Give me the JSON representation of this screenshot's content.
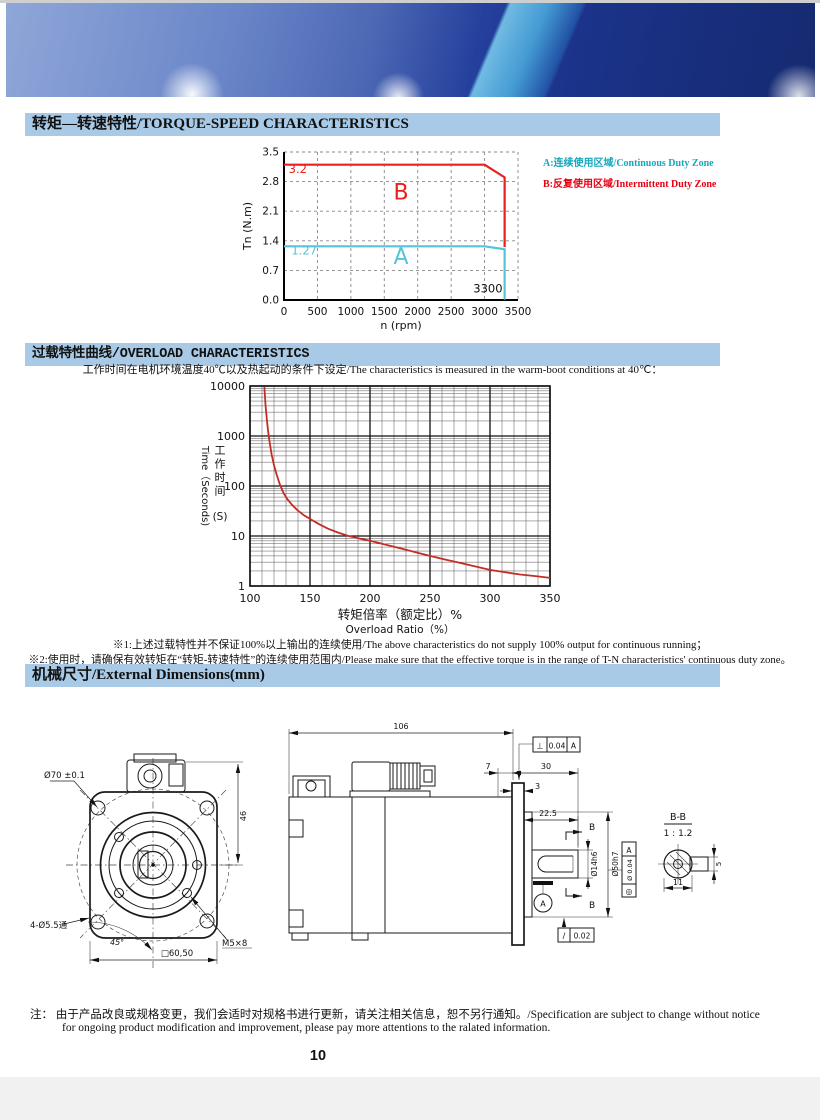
{
  "page": {
    "number": "10"
  },
  "sections": {
    "torque": {
      "title": "转矩—转速特性/TORQUE-SPEED CHARACTERISTICS"
    },
    "overload": {
      "title": "过载特性曲线/OVERLOAD CHARACTERISTICS",
      "condition": "工作时间在电机环境温度40℃以及热起动的条件下设定/The characteristics is measured in the warm-boot conditions at 40℃：",
      "note1": "※1:上述过载特性并不保证100%以上输出的连续使用/The above characteristics do not supply 100% output for continuous running；",
      "note2": "※2:使用时，请确保有效转矩在“转矩-转速特性”的连续使用范围内/Please make sure that the effective torque is in the range of T-N characteristics' continuous duty zone。"
    },
    "dimensions": {
      "title": "机械尺寸/External Dimensions(mm)"
    }
  },
  "footer": {
    "note_label": "注：",
    "line1": "由于产品改良或规格变更，我们会适时对规格书进行更新，请关注相关信息，恕不另行通知。/Specification are subject to change without notice",
    "line2": "for ongoing product modification and improvement, please pay more attentions to the ralated information."
  },
  "chart_data": [
    {
      "type": "line",
      "title": "Torque-Speed Characteristics",
      "xlabel": "n (rpm)",
      "ylabel": "Tn (N.m)",
      "xlim": [
        0,
        3500
      ],
      "ylim": [
        0,
        3.5
      ],
      "xticks": [
        0,
        500,
        1000,
        1500,
        2000,
        2500,
        3000,
        3500
      ],
      "yticks": [
        0.0,
        0.7,
        1.4,
        2.1,
        2.8,
        3.5
      ],
      "grid": "dashed",
      "series": [
        {
          "name": "B intermittent duty limit",
          "color": "#e8201e",
          "points": [
            [
              0,
              3.2
            ],
            [
              3000,
              3.2
            ],
            [
              3300,
              2.9
            ],
            [
              3300,
              1.25
            ]
          ]
        },
        {
          "name": "A continuous duty limit",
          "color": "#55c3d8",
          "points": [
            [
              0,
              1.27
            ],
            [
              3000,
              1.27
            ],
            [
              3300,
              1.2
            ],
            [
              3300,
              0.01
            ]
          ]
        }
      ],
      "annotations": [
        {
          "text": "3.2",
          "x": 70,
          "y": 3.0,
          "color": "#e8201e",
          "size": 11.5,
          "anchor": "start"
        },
        {
          "text": "1.27",
          "x": 110,
          "y": 1.08,
          "color": "#55c3d8",
          "size": 11.5,
          "anchor": "start"
        },
        {
          "text": "B",
          "x": 1750,
          "y": 2.38,
          "color": "#e8201e",
          "size": 22,
          "anchor": "middle"
        },
        {
          "text": "A",
          "x": 1750,
          "y": 0.85,
          "color": "#55c3d8",
          "size": 22,
          "anchor": "middle"
        },
        {
          "text": "3300",
          "x": 3050,
          "y": 0.18,
          "color": "#111111",
          "size": 11.5,
          "anchor": "middle"
        }
      ],
      "legend": [
        {
          "label": "A:连续使用区域/Continuous Duty Zone",
          "color": "#16a8bc"
        },
        {
          "label": "B:反复使用区域/Intermittent Duty Zone",
          "color": "#e60012"
        }
      ],
      "legend_position": "right"
    },
    {
      "type": "line",
      "title": "Overload Characteristics",
      "xlabel_zh": "转矩倍率（额定比）%",
      "xlabel_en": "Overload Ratio（%）",
      "ylabel_zh": "工作时间",
      "ylabel_en": "Time（Seconds)",
      "ylabel_unit": "(S)",
      "xlim": [
        100,
        350
      ],
      "ylim": [
        1,
        10000
      ],
      "yscale": "log",
      "xticks": [
        100,
        150,
        200,
        250,
        300,
        350
      ],
      "x_minor_step": 10,
      "yticks": [
        1,
        10,
        100,
        1000,
        10000
      ],
      "grid": "log-full",
      "series": [
        {
          "name": "overload-curve",
          "color": "#c22e25",
          "points": [
            [
              112,
              9500
            ],
            [
              112.5,
              6000
            ],
            [
              113,
              4000
            ],
            [
              114,
              2200
            ],
            [
              115,
              1300
            ],
            [
              116,
              850
            ],
            [
              118,
              430
            ],
            [
              120,
              260
            ],
            [
              122,
              175
            ],
            [
              125,
              105
            ],
            [
              128,
              72
            ],
            [
              131,
              55
            ],
            [
              135,
              42
            ],
            [
              140,
              32
            ],
            [
              145,
              26
            ],
            [
              150,
              22
            ],
            [
              157,
              17.5
            ],
            [
              165,
              14
            ],
            [
              173,
              11.8
            ],
            [
              182,
              10
            ],
            [
              191,
              8.9
            ],
            [
              200,
              8
            ],
            [
              210,
              7
            ],
            [
              220,
              6.1
            ],
            [
              230,
              5.3
            ],
            [
              240,
              4.6
            ],
            [
              250,
              4
            ],
            [
              262,
              3.4
            ],
            [
              275,
              2.9
            ],
            [
              288,
              2.45
            ],
            [
              300,
              2.1
            ],
            [
              312,
              1.9
            ],
            [
              325,
              1.7
            ],
            [
              338,
              1.58
            ],
            [
              350,
              1.45
            ]
          ]
        }
      ]
    }
  ],
  "drawing": {
    "front": {
      "bolt_circle": "Ø70 ±0.1",
      "height_46": "46",
      "holes": "4-Ø5.5通",
      "angle_45": "45°",
      "square_60_5": "□60,50",
      "thread": "M5×8"
    },
    "side": {
      "length_106": "106",
      "dim_7": "7",
      "dim_30": "30",
      "dim_3": "3",
      "dim_22_5": "22.5",
      "shaft_dia": "Ø14h6",
      "spigot_dia": "Ø50h7",
      "perp_symbol": "⊥",
      "perp_tol": "0.04",
      "perp_datum": "A",
      "conc_symbol": "◎",
      "conc_tol": "Ø 0.04",
      "conc_datum": "A",
      "runout_symbol": "/",
      "runout_tol": "0.02",
      "datum_label": "A",
      "section_label": "B"
    },
    "section_bb": {
      "title": "B-B",
      "scale": "1 : 1.2",
      "width_11": "11",
      "key_5": "5"
    }
  }
}
